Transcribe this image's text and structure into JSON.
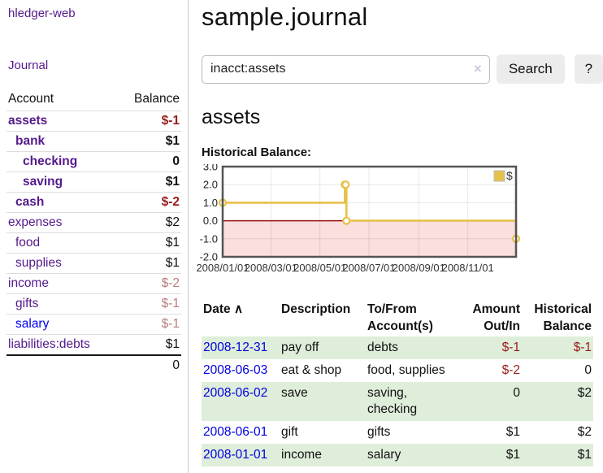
{
  "app": {
    "brand": "hledger-web",
    "nav_journal": "Journal"
  },
  "colors": {
    "link_purple": "#551a8b",
    "link_blue": "#0000ee",
    "date_link_blue": "#0000e0",
    "negative_strong": "#971c1c",
    "negative_dim": "#b97c7c",
    "row_green": "#dfeeda",
    "chart_gold": "#e6c14c",
    "chart_negative_region": "#fbdede",
    "chart_zero_line": "#991111"
  },
  "sidebar": {
    "headers": {
      "account": "Account",
      "balance": "Balance"
    },
    "accounts": [
      {
        "name": "assets",
        "balance": "$-1",
        "level": 0,
        "bold": true,
        "neg": "strong"
      },
      {
        "name": "bank",
        "balance": "$1",
        "level": 1,
        "bold": true,
        "neg": "none"
      },
      {
        "name": "checking",
        "balance": "0",
        "level": 2,
        "bold": true,
        "neg": "none"
      },
      {
        "name": "saving",
        "balance": "$1",
        "level": 2,
        "bold": true,
        "neg": "none"
      },
      {
        "name": "cash",
        "balance": "$-2",
        "level": 1,
        "bold": true,
        "neg": "strong"
      },
      {
        "name": "expenses",
        "balance": "$2",
        "level": 0,
        "bold": false,
        "neg": "none"
      },
      {
        "name": "food",
        "balance": "$1",
        "level": 1,
        "bold": false,
        "neg": "none"
      },
      {
        "name": "supplies",
        "balance": "$1",
        "level": 1,
        "bold": false,
        "neg": "none"
      },
      {
        "name": "income",
        "balance": "$-2",
        "level": 0,
        "bold": false,
        "neg": "dim"
      },
      {
        "name": "gifts",
        "balance": "$-1",
        "level": 1,
        "bold": false,
        "neg": "dim"
      },
      {
        "name": "salary",
        "balance": "$-1",
        "level": 1,
        "bold": false,
        "neg": "dim",
        "link_color": "blue"
      },
      {
        "name": "liabilities:debts",
        "balance": "$1",
        "level": 0,
        "bold": false,
        "neg": "none"
      }
    ],
    "total": "0"
  },
  "main": {
    "title": "sample.journal",
    "search": {
      "query": "inacct:assets",
      "clear_icon": "×",
      "search_button": "Search",
      "help_button": "?"
    },
    "account_heading": "assets",
    "chart_label": "Historical Balance:"
  },
  "chart_data": {
    "type": "line",
    "title": "Historical Balance of assets",
    "step": true,
    "series": [
      {
        "name": "$",
        "color": "#e6c14c",
        "points": [
          [
            "2008-01-01",
            1
          ],
          [
            "2008-06-01",
            2
          ],
          [
            "2008-06-02",
            2
          ],
          [
            "2008-06-03",
            0
          ],
          [
            "2008-12-31",
            -1
          ]
        ]
      }
    ],
    "x_ticks": [
      "2008/01/01",
      "2008/03/01",
      "2008/05/01",
      "2008/07/01",
      "2008/09/01",
      "2008/11/01"
    ],
    "y_ticks": [
      "3.0",
      "2.0",
      "1.0",
      "0.0",
      "-1.0",
      "-2.0"
    ],
    "ylim": [
      -2,
      3
    ],
    "xlim_days": [
      0,
      365
    ],
    "grid": true,
    "legend": {
      "label": "$",
      "position": "top-right"
    },
    "negative_region_color": "#fbdede",
    "zero_line_color": "#991111"
  },
  "register": {
    "headers": {
      "date": "Date",
      "sort_arrow": "∧",
      "description": "Description",
      "accounts": "To/From Account(s)",
      "amount": "Amount Out/In",
      "balance": "Historical Balance"
    },
    "rows": [
      {
        "date": "2008-12-31",
        "description": "pay off",
        "accounts": "debts",
        "amount": "$-1",
        "amount_neg": true,
        "balance": "$-1",
        "balance_neg": true
      },
      {
        "date": "2008-06-03",
        "description": "eat & shop",
        "accounts": "food, supplies",
        "amount": "$-2",
        "amount_neg": true,
        "balance": "0",
        "balance_neg": false
      },
      {
        "date": "2008-06-02",
        "description": "save",
        "accounts": "saving, checking",
        "amount": "0",
        "amount_neg": false,
        "balance": "$2",
        "balance_neg": false
      },
      {
        "date": "2008-06-01",
        "description": "gift",
        "accounts": "gifts",
        "amount": "$1",
        "amount_neg": false,
        "balance": "$2",
        "balance_neg": false
      },
      {
        "date": "2008-01-01",
        "description": "income",
        "accounts": "salary",
        "amount": "$1",
        "amount_neg": false,
        "balance": "$1",
        "balance_neg": false
      }
    ]
  }
}
